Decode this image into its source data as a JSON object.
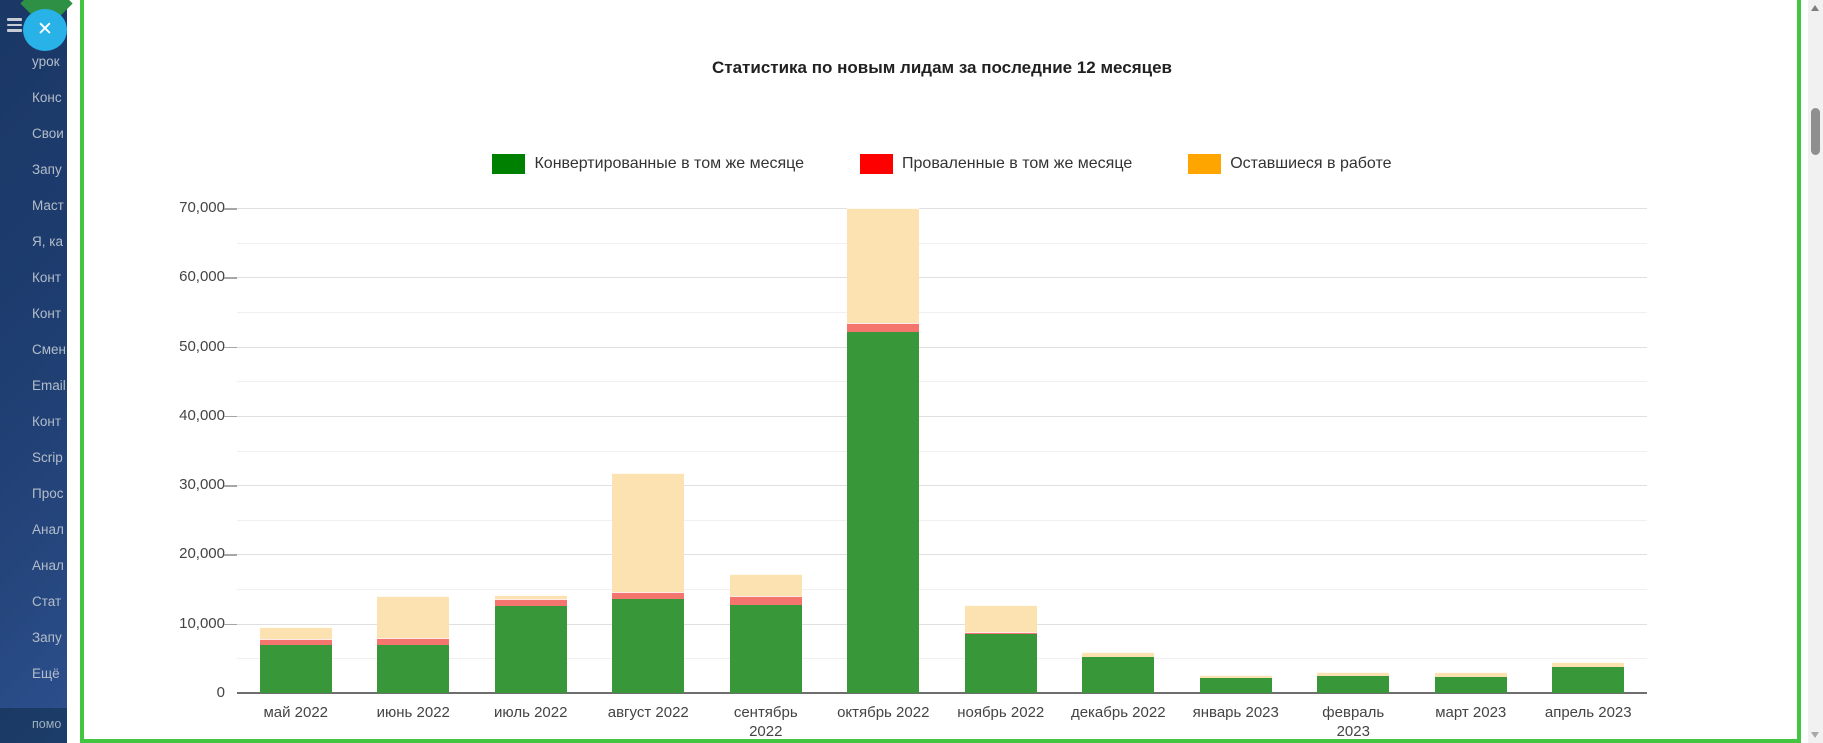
{
  "ui": {
    "close_glyph": "✕",
    "colors": {
      "sidebar_bg": "#1e3d70",
      "frame_green": "#42c642",
      "close_btn_blue": "#29b2e8",
      "logo_green": "#2e9044"
    }
  },
  "sidebar": {
    "items": [
      {
        "label": "урок"
      },
      {
        "label": "Конс"
      },
      {
        "label": "Свои"
      },
      {
        "label": "Запу"
      },
      {
        "label": "Маст"
      },
      {
        "label": "Я, ка"
      },
      {
        "label": "Конт"
      },
      {
        "label": "Конт"
      },
      {
        "label": "Смен"
      },
      {
        "label": "Email"
      },
      {
        "label": "Конт"
      },
      {
        "label": "Scrip"
      },
      {
        "label": "Прос"
      },
      {
        "label": "Анал"
      },
      {
        "label": "Анал"
      },
      {
        "label": "Стат"
      },
      {
        "label": "Запу"
      },
      {
        "label": "Ещё"
      }
    ],
    "bottom_label": "помо"
  },
  "chart_data": {
    "type": "bar",
    "stacked": true,
    "title": "Статистика по новым лидам за последние 12 месяцев",
    "legend_position": "top-center",
    "grid": true,
    "ylim": [
      0,
      70000
    ],
    "ytick_step": 10000,
    "grid_minor_step": 5000,
    "categories": [
      "май 2022",
      "июнь 2022",
      "июль 2022",
      "август 2022",
      "сентябрь 2022",
      "октябрь 2022",
      "ноябрь 2022",
      "декабрь 2022",
      "январь 2023",
      "февраль 2023",
      "март 2023",
      "апрель 2023"
    ],
    "category_lines": [
      [
        "май 2022"
      ],
      [
        "июнь 2022"
      ],
      [
        "июль 2022"
      ],
      [
        "август 2022"
      ],
      [
        "сентябрь",
        "2022"
      ],
      [
        "октябрь 2022"
      ],
      [
        "ноябрь 2022"
      ],
      [
        "декабрь 2022"
      ],
      [
        "январь 2023"
      ],
      [
        "февраль",
        "2023"
      ],
      [
        "март 2023"
      ],
      [
        "апрель 2023"
      ]
    ],
    "series": [
      {
        "name": "Конвертированные в том же месяце",
        "legend_color": "#008000",
        "bar_color": "#389738",
        "values": [
          6900,
          6900,
          12500,
          13600,
          12700,
          52100,
          8550,
          5150,
          2100,
          2450,
          2350,
          3800
        ]
      },
      {
        "name": "Проваленные в том же месяце",
        "legend_color": "#ff0000",
        "bar_color": "#f4756d",
        "values": [
          900,
          1000,
          1000,
          1000,
          1300,
          1300,
          300,
          0,
          0,
          0,
          0,
          0
        ]
      },
      {
        "name": "Оставшиеся в работе",
        "legend_color": "#ffa500",
        "bar_color": "#fce2b0",
        "values": [
          1800,
          6100,
          700,
          17100,
          3200,
          16600,
          3850,
          750,
          450,
          550,
          650,
          650
        ]
      }
    ]
  }
}
